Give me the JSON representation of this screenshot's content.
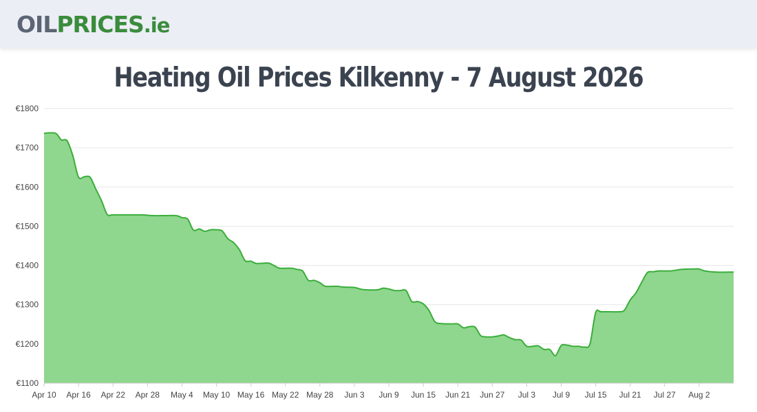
{
  "header": {
    "logo_part1": "OIL",
    "logo_part2": "PRICES",
    "logo_part3": ".ie"
  },
  "page": {
    "title": "Heating Oil Prices Kilkenny - 7 August 2026"
  },
  "colors": {
    "line": "#3aad3a",
    "fill": "#8fd68e",
    "grid": "#e6e6e6",
    "text": "#3b4350",
    "logo_grey": "#5c6573",
    "logo_green": "#3a8c3c",
    "header_bg": "#eceef5"
  },
  "chart_data": {
    "type": "area",
    "title": "",
    "xlabel": "",
    "ylabel": "",
    "ylim": [
      1100,
      1800
    ],
    "y_ticks": [
      1100,
      1200,
      1300,
      1400,
      1500,
      1600,
      1700,
      1800
    ],
    "y_tick_labels": [
      "€1100",
      "€1200",
      "€1300",
      "€1400",
      "€1500",
      "€1600",
      "€1700",
      "€1800"
    ],
    "x_start": "2026-04-10",
    "x_end": "2026-08-08",
    "x_tick_labels": [
      "Apr 10",
      "Apr 16",
      "Apr 22",
      "Apr 28",
      "May 4",
      "May 10",
      "May 16",
      "May 22",
      "May 28",
      "Jun 3",
      "Jun 9",
      "Jun 15",
      "Jun 21",
      "Jun 27",
      "Jul 3",
      "Jul 9",
      "Jul 15",
      "Jul 21",
      "Jul 27",
      "Aug 2"
    ],
    "grid": true,
    "legend": "none",
    "series": [
      {
        "points": [
          [
            "2026-04-10",
            1737
          ],
          [
            "2026-04-12",
            1737
          ],
          [
            "2026-04-13",
            1720
          ],
          [
            "2026-04-14",
            1718
          ],
          [
            "2026-04-15",
            1680
          ],
          [
            "2026-04-16",
            1625
          ],
          [
            "2026-04-17",
            1626
          ],
          [
            "2026-04-18",
            1625
          ],
          [
            "2026-04-19",
            1595
          ],
          [
            "2026-04-20",
            1565
          ],
          [
            "2026-04-21",
            1530
          ],
          [
            "2026-04-22",
            1529
          ],
          [
            "2026-04-25",
            1529
          ],
          [
            "2026-04-27",
            1529
          ],
          [
            "2026-04-29",
            1527
          ],
          [
            "2026-05-01",
            1527
          ],
          [
            "2026-05-03",
            1527
          ],
          [
            "2026-05-04",
            1522
          ],
          [
            "2026-05-05",
            1518
          ],
          [
            "2026-05-06",
            1490
          ],
          [
            "2026-05-07",
            1493
          ],
          [
            "2026-05-08",
            1487
          ],
          [
            "2026-05-09",
            1491
          ],
          [
            "2026-05-10",
            1491
          ],
          [
            "2026-05-11",
            1488
          ],
          [
            "2026-05-12",
            1468
          ],
          [
            "2026-05-13",
            1458
          ],
          [
            "2026-05-14",
            1440
          ],
          [
            "2026-05-15",
            1412
          ],
          [
            "2026-05-16",
            1411
          ],
          [
            "2026-05-17",
            1405
          ],
          [
            "2026-05-19",
            1406
          ],
          [
            "2026-05-20",
            1400
          ],
          [
            "2026-05-21",
            1393
          ],
          [
            "2026-05-23",
            1393
          ],
          [
            "2026-05-24",
            1390
          ],
          [
            "2026-05-25",
            1386
          ],
          [
            "2026-05-26",
            1362
          ],
          [
            "2026-05-27",
            1362
          ],
          [
            "2026-05-28",
            1356
          ],
          [
            "2026-05-29",
            1347
          ],
          [
            "2026-05-31",
            1347
          ],
          [
            "2026-06-01",
            1345
          ],
          [
            "2026-06-03",
            1344
          ],
          [
            "2026-06-04",
            1340
          ],
          [
            "2026-06-05",
            1338
          ],
          [
            "2026-06-07",
            1338
          ],
          [
            "2026-06-08",
            1342
          ],
          [
            "2026-06-09",
            1340
          ],
          [
            "2026-06-10",
            1336
          ],
          [
            "2026-06-11",
            1336
          ],
          [
            "2026-06-12",
            1336
          ],
          [
            "2026-06-13",
            1308
          ],
          [
            "2026-06-14",
            1308
          ],
          [
            "2026-06-15",
            1302
          ],
          [
            "2026-06-16",
            1285
          ],
          [
            "2026-06-17",
            1257
          ],
          [
            "2026-06-18",
            1252
          ],
          [
            "2026-06-20",
            1251
          ],
          [
            "2026-06-21",
            1251
          ],
          [
            "2026-06-22",
            1241
          ],
          [
            "2026-06-23",
            1244
          ],
          [
            "2026-06-24",
            1243
          ],
          [
            "2026-06-25",
            1221
          ],
          [
            "2026-06-26",
            1218
          ],
          [
            "2026-06-27",
            1218
          ],
          [
            "2026-06-28",
            1220
          ],
          [
            "2026-06-29",
            1223
          ],
          [
            "2026-06-30",
            1216
          ],
          [
            "2026-07-01",
            1211
          ],
          [
            "2026-07-02",
            1210
          ],
          [
            "2026-07-03",
            1194
          ],
          [
            "2026-07-04",
            1194
          ],
          [
            "2026-07-05",
            1195
          ],
          [
            "2026-07-06",
            1186
          ],
          [
            "2026-07-07",
            1186
          ],
          [
            "2026-07-08",
            1170
          ],
          [
            "2026-07-09",
            1196
          ],
          [
            "2026-07-10",
            1197
          ],
          [
            "2026-07-11",
            1194
          ],
          [
            "2026-07-12",
            1194
          ],
          [
            "2026-07-13",
            1192
          ],
          [
            "2026-07-14",
            1200
          ],
          [
            "2026-07-15",
            1280
          ],
          [
            "2026-07-16",
            1282
          ],
          [
            "2026-07-19",
            1282
          ],
          [
            "2026-07-20",
            1286
          ],
          [
            "2026-07-21",
            1312
          ],
          [
            "2026-07-22",
            1330
          ],
          [
            "2026-07-23",
            1357
          ],
          [
            "2026-07-24",
            1382
          ],
          [
            "2026-07-25",
            1384
          ],
          [
            "2026-07-26",
            1386
          ],
          [
            "2026-07-28",
            1386
          ],
          [
            "2026-07-30",
            1390
          ],
          [
            "2026-08-01",
            1391
          ],
          [
            "2026-08-02",
            1391
          ],
          [
            "2026-08-03",
            1386
          ],
          [
            "2026-08-05",
            1383
          ],
          [
            "2026-08-07",
            1383
          ]
        ]
      }
    ]
  }
}
